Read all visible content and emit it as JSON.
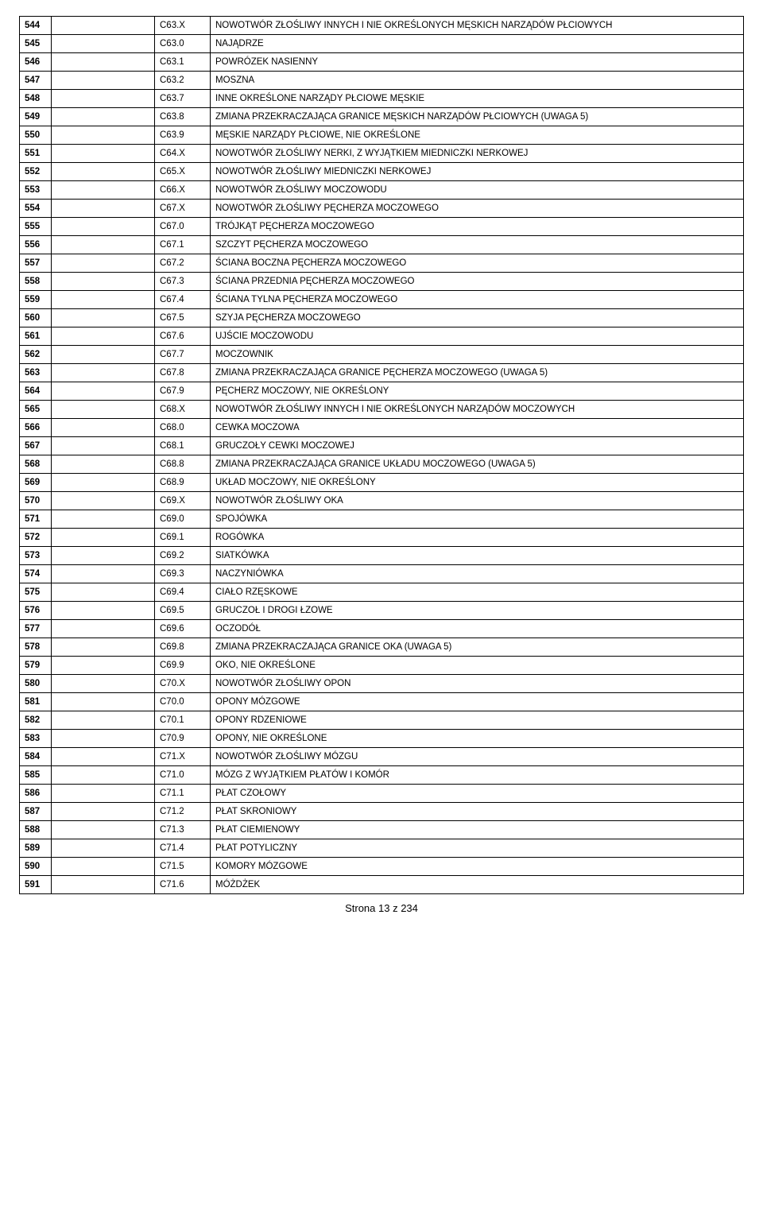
{
  "table": {
    "rows": [
      {
        "num": "544",
        "code": "C63.X",
        "desc": "NOWOTWÓR ZŁOŚLIWY INNYCH I NIE OKREŚLONYCH MĘSKICH NARZĄDÓW PŁCIOWYCH"
      },
      {
        "num": "545",
        "code": "C63.0",
        "desc": "NAJĄDRZE"
      },
      {
        "num": "546",
        "code": "C63.1",
        "desc": "POWRÓZEK NASIENNY"
      },
      {
        "num": "547",
        "code": "C63.2",
        "desc": "MOSZNA"
      },
      {
        "num": "548",
        "code": "C63.7",
        "desc": "INNE OKREŚLONE NARZĄDY PŁCIOWE MĘSKIE"
      },
      {
        "num": "549",
        "code": "C63.8",
        "desc": "ZMIANA PRZEKRACZAJĄCA GRANICE MĘSKICH NARZĄDÓW PŁCIOWYCH (UWAGA 5)"
      },
      {
        "num": "550",
        "code": "C63.9",
        "desc": "MĘSKIE NARZĄDY PŁCIOWE, NIE OKREŚLONE"
      },
      {
        "num": "551",
        "code": "C64.X",
        "desc": "NOWOTWÓR ZŁOŚLIWY NERKI, Z WYJĄTKIEM MIEDNICZKI NERKOWEJ"
      },
      {
        "num": "552",
        "code": "C65.X",
        "desc": "NOWOTWÓR ZŁOŚLIWY MIEDNICZKI NERKOWEJ"
      },
      {
        "num": "553",
        "code": "C66.X",
        "desc": "NOWOTWÓR ZŁOŚLIWY MOCZOWODU"
      },
      {
        "num": "554",
        "code": "C67.X",
        "desc": "NOWOTWÓR ZŁOŚLIWY PĘCHERZA MOCZOWEGO"
      },
      {
        "num": "555",
        "code": "C67.0",
        "desc": "TRÓJKĄT PĘCHERZA MOCZOWEGO"
      },
      {
        "num": "556",
        "code": "C67.1",
        "desc": "SZCZYT PĘCHERZA MOCZOWEGO"
      },
      {
        "num": "557",
        "code": "C67.2",
        "desc": "ŚCIANA BOCZNA PĘCHERZA MOCZOWEGO"
      },
      {
        "num": "558",
        "code": "C67.3",
        "desc": "ŚCIANA PRZEDNIA PĘCHERZA MOCZOWEGO"
      },
      {
        "num": "559",
        "code": "C67.4",
        "desc": "ŚCIANA TYLNA PĘCHERZA MOCZOWEGO"
      },
      {
        "num": "560",
        "code": "C67.5",
        "desc": "SZYJA PĘCHERZA MOCZOWEGO"
      },
      {
        "num": "561",
        "code": "C67.6",
        "desc": "UJŚCIE MOCZOWODU"
      },
      {
        "num": "562",
        "code": "C67.7",
        "desc": "MOCZOWNIK"
      },
      {
        "num": "563",
        "code": "C67.8",
        "desc": "ZMIANA PRZEKRACZAJĄCA GRANICE PĘCHERZA MOCZOWEGO (UWAGA 5)"
      },
      {
        "num": "564",
        "code": "C67.9",
        "desc": "PĘCHERZ MOCZOWY, NIE OKREŚLONY"
      },
      {
        "num": "565",
        "code": "C68.X",
        "desc": "NOWOTWÓR ZŁOŚLIWY INNYCH I NIE OKREŚLONYCH NARZĄDÓW MOCZOWYCH"
      },
      {
        "num": "566",
        "code": "C68.0",
        "desc": "CEWKA MOCZOWA"
      },
      {
        "num": "567",
        "code": "C68.1",
        "desc": "GRUCZOŁY CEWKI MOCZOWEJ"
      },
      {
        "num": "568",
        "code": "C68.8",
        "desc": "ZMIANA PRZEKRACZAJĄCA GRANICE UKŁADU MOCZOWEGO (UWAGA 5)"
      },
      {
        "num": "569",
        "code": "C68.9",
        "desc": "UKŁAD MOCZOWY, NIE OKREŚLONY"
      },
      {
        "num": "570",
        "code": "C69.X",
        "desc": "NOWOTWÓR ZŁOŚLIWY OKA"
      },
      {
        "num": "571",
        "code": "C69.0",
        "desc": "SPOJÓWKA"
      },
      {
        "num": "572",
        "code": "C69.1",
        "desc": "ROGÓWKA"
      },
      {
        "num": "573",
        "code": "C69.2",
        "desc": "SIATKÓWKA"
      },
      {
        "num": "574",
        "code": "C69.3",
        "desc": "NACZYNIÓWKA"
      },
      {
        "num": "575",
        "code": "C69.4",
        "desc": "CIAŁO RZĘSKOWE"
      },
      {
        "num": "576",
        "code": "C69.5",
        "desc": "GRUCZOŁ I DROGI ŁZOWE"
      },
      {
        "num": "577",
        "code": "C69.6",
        "desc": "OCZODÓŁ"
      },
      {
        "num": "578",
        "code": "C69.8",
        "desc": "ZMIANA PRZEKRACZAJĄCA GRANICE OKA (UWAGA 5)"
      },
      {
        "num": "579",
        "code": "C69.9",
        "desc": "OKO, NIE OKREŚLONE"
      },
      {
        "num": "580",
        "code": "C70.X",
        "desc": "NOWOTWÓR ZŁOŚLIWY OPON"
      },
      {
        "num": "581",
        "code": "C70.0",
        "desc": "OPONY MÓZGOWE"
      },
      {
        "num": "582",
        "code": "C70.1",
        "desc": "OPONY RDZENIOWE"
      },
      {
        "num": "583",
        "code": "C70.9",
        "desc": "OPONY, NIE OKREŚLONE"
      },
      {
        "num": "584",
        "code": "C71.X",
        "desc": "NOWOTWÓR ZŁOŚLIWY MÓZGU"
      },
      {
        "num": "585",
        "code": "C71.0",
        "desc": "MÓZG Z WYJĄTKIEM PŁATÓW I KOMÓR"
      },
      {
        "num": "586",
        "code": "C71.1",
        "desc": "PŁAT CZOŁOWY"
      },
      {
        "num": "587",
        "code": "C71.2",
        "desc": "PŁAT SKRONIOWY"
      },
      {
        "num": "588",
        "code": "C71.3",
        "desc": "PŁAT CIEMIENOWY"
      },
      {
        "num": "589",
        "code": "C71.4",
        "desc": "PŁAT POTYLICZNY"
      },
      {
        "num": "590",
        "code": "C71.5",
        "desc": "KOMORY MÓZGOWE"
      },
      {
        "num": "591",
        "code": "C71.6",
        "desc": "MÓŻDŻEK"
      }
    ]
  },
  "footer": {
    "text": "Strona 13 z 234"
  }
}
